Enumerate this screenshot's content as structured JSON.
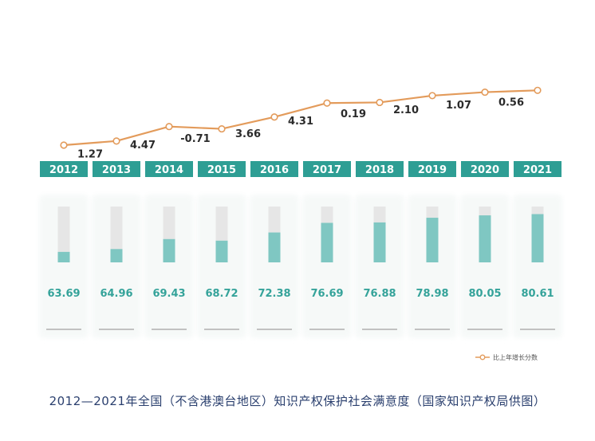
{
  "chart_data": {
    "type": "bar+line",
    "title": "",
    "categories": [
      "2012",
      "2013",
      "2014",
      "2015",
      "2016",
      "2017",
      "2018",
      "2019",
      "2020",
      "2021"
    ],
    "series": [
      {
        "name": "",
        "type": "bar",
        "values": [
          63.69,
          64.96,
          69.43,
          68.72,
          72.38,
          76.69,
          76.88,
          78.98,
          80.05,
          80.61
        ]
      },
      {
        "name": "比上年增长分数",
        "type": "line",
        "values": [
          null,
          1.27,
          4.47,
          -0.71,
          3.66,
          4.31,
          0.19,
          2.1,
          1.07,
          0.56
        ]
      }
    ],
    "value_labels": [
      "63.69",
      "64.96",
      "69.43",
      "68.72",
      "72.38",
      "76.69",
      "76.88",
      "78.98",
      "80.05",
      "80.61"
    ],
    "growth_labels": [
      "",
      "1.27",
      "4.47",
      "-0.71",
      "3.66",
      "4.31",
      "0.19",
      "2.10",
      "1.07",
      "0.56"
    ],
    "legend": {
      "label": "比上年增长分数",
      "position": "bottom-right"
    },
    "colors": {
      "header": "#2e9e94",
      "bar_fill": "#7fc7c2",
      "bar_track": "#e6e6e6",
      "line": "#e39b5b",
      "value_text": "#35a39a"
    }
  },
  "caption": "2012—2021年全国（不含港澳台地区）知识产权保护社会满意度（国家知识产权局供图）"
}
